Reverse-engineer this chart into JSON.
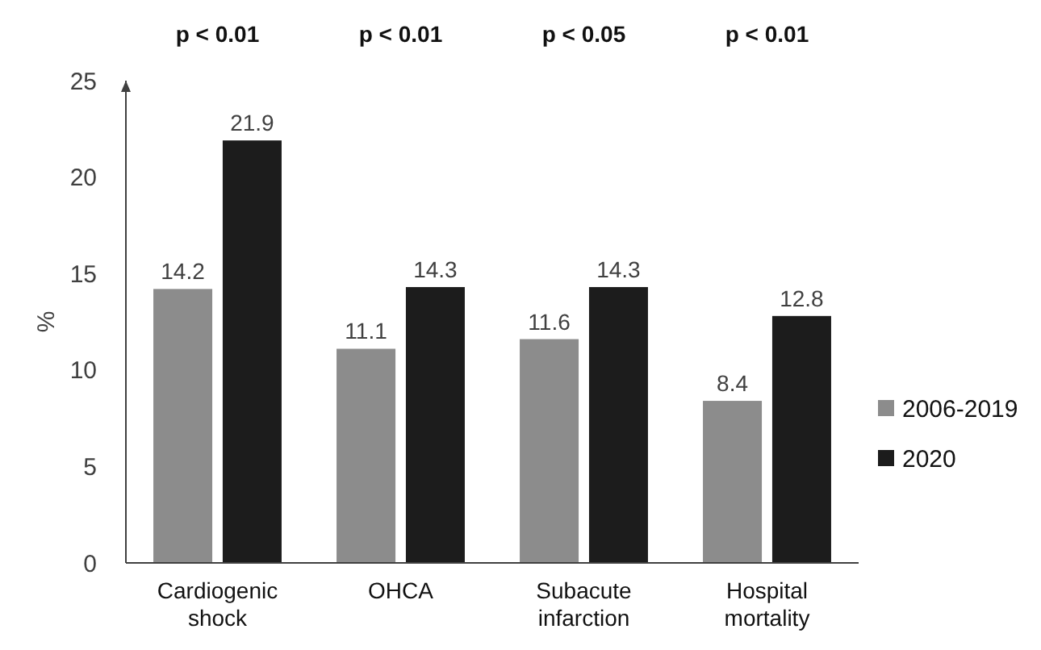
{
  "chart_data": {
    "type": "bar",
    "ylabel": "%",
    "categories": [
      "Cardiogenic shock",
      "OHCA",
      "Subacute infarction",
      "Hospital mortality"
    ],
    "series": [
      {
        "name": "2006-2019",
        "color": "#8c8c8c",
        "values": [
          14.2,
          11.1,
          11.6,
          8.4
        ]
      },
      {
        "name": "2020",
        "color": "#1c1c1c",
        "values": [
          21.9,
          14.3,
          14.3,
          12.8
        ]
      }
    ],
    "ylim": [
      0,
      25
    ],
    "yticks": [
      0,
      5,
      10,
      15,
      20,
      25
    ],
    "grid": false,
    "legend": "right",
    "data_labels": true,
    "annotations": [
      "p < 0.01",
      "p < 0.01",
      "p < 0.05",
      "p < 0.01"
    ]
  }
}
